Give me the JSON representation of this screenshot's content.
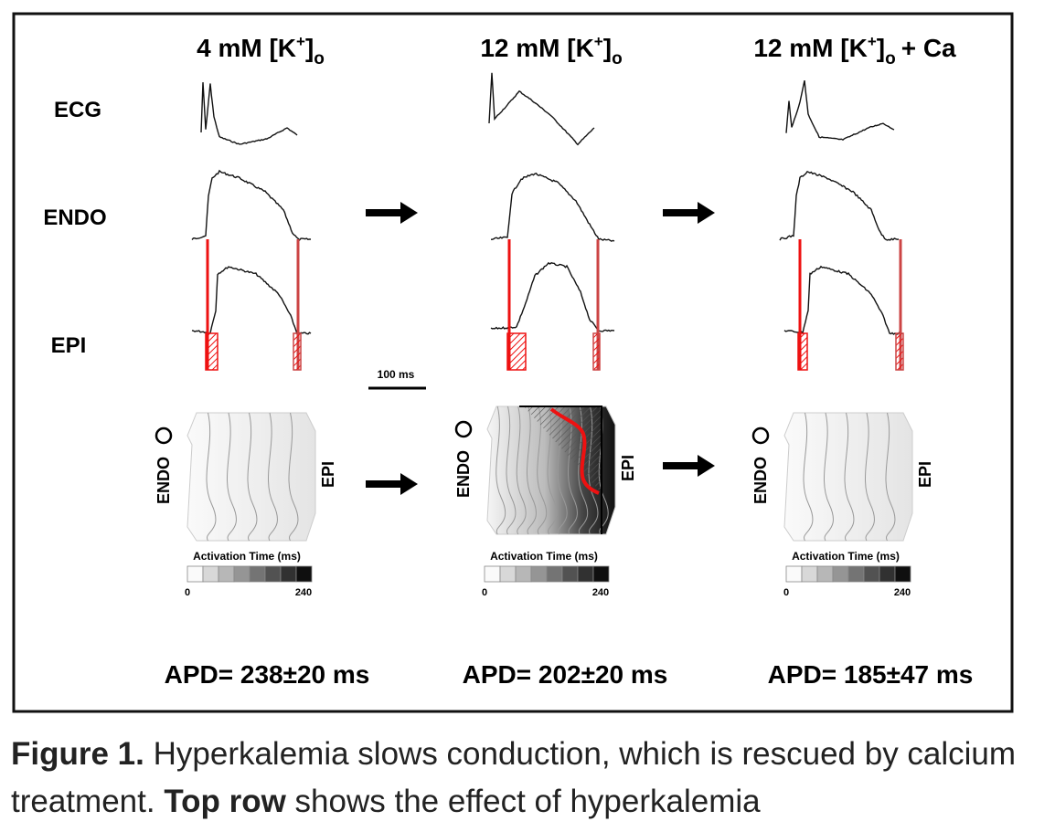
{
  "figure": {
    "columns": [
      {
        "header": {
          "prefix": "4 mM [K",
          "sup": "+",
          "mid": "]",
          "sub": "o"
        },
        "colorbar": {
          "title": "Activation Time (ms)",
          "min": "0",
          "max": "240"
        },
        "apd": "APD= 238±20 ms"
      },
      {
        "header": {
          "prefix": "12 mM [K",
          "sup": "+",
          "mid": "]",
          "sub": "o"
        },
        "colorbar": {
          "title": "Activation Time (ms)",
          "min": "0",
          "max": "240"
        },
        "apd": "APD= 202±20 ms"
      },
      {
        "header": {
          "prefix": "12 mM [K",
          "sup": "+",
          "mid": "]",
          "sub": "o",
          "suffix": "+ Ca"
        },
        "colorbar": {
          "title": "Activation Time (ms)",
          "min": "0",
          "max": "240"
        },
        "apd": "APD= 185±47 ms"
      }
    ],
    "row_labels": [
      "ECG",
      "ENDO",
      "EPI"
    ],
    "scale_bar": "100 ms",
    "map_labels": {
      "left": "ENDO",
      "right": "EPI"
    }
  },
  "caption": {
    "label": "Figure 1.",
    "text1": "Hyperkalemia slows conduction, which is rescued by calcium treatment.",
    "bold2": "Top row",
    "text2": "shows the effect of hyperkalemia"
  }
}
